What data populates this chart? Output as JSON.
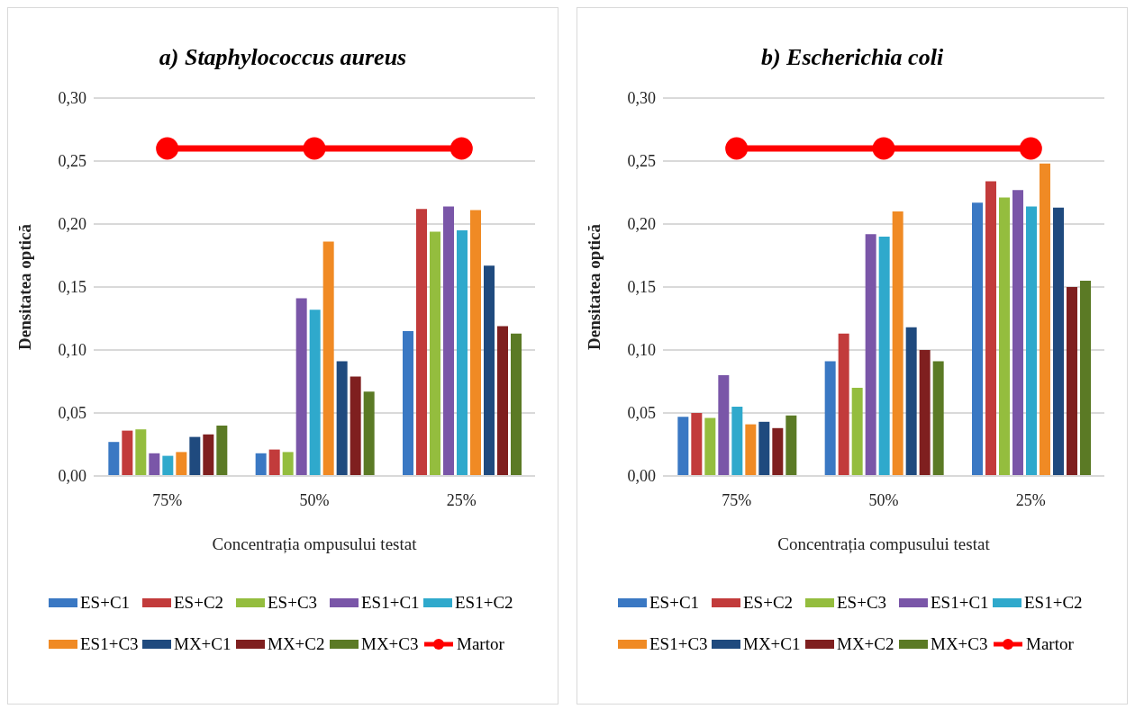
{
  "chart_data": [
    {
      "type": "bar",
      "title": "a) Staphylococcus aureus",
      "xlabel": "Concentrația ompusului testat",
      "ylabel": "Densitatea  optică",
      "categories": [
        "75%",
        "50%",
        "25%"
      ],
      "ylim": [
        0,
        0.3
      ],
      "yticks": [
        {
          "value": 0,
          "label": "0,00"
        },
        {
          "value": 0.05,
          "label": "0,05"
        },
        {
          "value": 0.1,
          "label": "0,10"
        },
        {
          "value": 0.15,
          "label": "0,15"
        },
        {
          "value": 0.2,
          "label": "0,20"
        },
        {
          "value": 0.25,
          "label": "0,25"
        },
        {
          "value": 0.3,
          "label": "0,30"
        }
      ],
      "grid": "y",
      "legend": "bottom",
      "series": [
        {
          "name": "ES+C1",
          "color": "#3a78c3",
          "values": [
            0.027,
            0.018,
            0.115
          ]
        },
        {
          "name": "ES+C2",
          "color": "#c23b3b",
          "values": [
            0.036,
            0.021,
            0.212
          ]
        },
        {
          "name": "ES+C3",
          "color": "#94bd3e",
          "values": [
            0.037,
            0.019,
            0.194
          ]
        },
        {
          "name": "ES1+C1",
          "color": "#7a56a8",
          "values": [
            0.018,
            0.141,
            0.214
          ]
        },
        {
          "name": "ES1+C2",
          "color": "#2fa9cc",
          "values": [
            0.016,
            0.132,
            0.195
          ]
        },
        {
          "name": "ES1+C3",
          "color": "#f08a24",
          "values": [
            0.019,
            0.186,
            0.211
          ]
        },
        {
          "name": "MX+C1",
          "color": "#1f4a7e",
          "values": [
            0.031,
            0.091,
            0.167
          ]
        },
        {
          "name": "MX+C2",
          "color": "#7f1f1f",
          "values": [
            0.033,
            0.079,
            0.119
          ]
        },
        {
          "name": "MX+C3",
          "color": "#5b7a25",
          "values": [
            0.04,
            0.067,
            0.113
          ]
        },
        {
          "name": "Martor",
          "type": "line",
          "color": "#ff0000",
          "marker": "circle",
          "values": [
            0.26,
            0.26,
            0.26
          ]
        }
      ]
    },
    {
      "type": "bar",
      "title": "b) Escherichia coli",
      "xlabel": "Concentrația compusului testat",
      "ylabel": "Densitatea  optică",
      "categories": [
        "75%",
        "50%",
        "25%"
      ],
      "ylim": [
        0,
        0.3
      ],
      "yticks": [
        {
          "value": 0,
          "label": "0,00"
        },
        {
          "value": 0.05,
          "label": "0,05"
        },
        {
          "value": 0.1,
          "label": "0,10"
        },
        {
          "value": 0.15,
          "label": "0,15"
        },
        {
          "value": 0.2,
          "label": "0,20"
        },
        {
          "value": 0.25,
          "label": "0,25"
        },
        {
          "value": 0.3,
          "label": "0,30"
        }
      ],
      "grid": "y",
      "legend": "bottom",
      "series": [
        {
          "name": "ES+C1",
          "color": "#3a78c3",
          "values": [
            0.047,
            0.091,
            0.217
          ]
        },
        {
          "name": "ES+C2",
          "color": "#c23b3b",
          "values": [
            0.05,
            0.113,
            0.234
          ]
        },
        {
          "name": "ES+C3",
          "color": "#94bd3e",
          "values": [
            0.046,
            0.07,
            0.221
          ]
        },
        {
          "name": "ES1+C1",
          "color": "#7a56a8",
          "values": [
            0.08,
            0.192,
            0.227
          ]
        },
        {
          "name": "ES1+C2",
          "color": "#2fa9cc",
          "values": [
            0.055,
            0.19,
            0.214
          ]
        },
        {
          "name": "ES1+C3",
          "color": "#f08a24",
          "values": [
            0.041,
            0.21,
            0.248
          ]
        },
        {
          "name": "MX+C1",
          "color": "#1f4a7e",
          "values": [
            0.043,
            0.118,
            0.213
          ]
        },
        {
          "name": "MX+C2",
          "color": "#7f1f1f",
          "values": [
            0.038,
            0.1,
            0.15
          ]
        },
        {
          "name": "MX+C3",
          "color": "#5b7a25",
          "values": [
            0.048,
            0.091,
            0.155
          ]
        },
        {
          "name": "Martor",
          "type": "line",
          "color": "#ff0000",
          "marker": "circle",
          "values": [
            0.26,
            0.26,
            0.26
          ]
        }
      ]
    }
  ]
}
